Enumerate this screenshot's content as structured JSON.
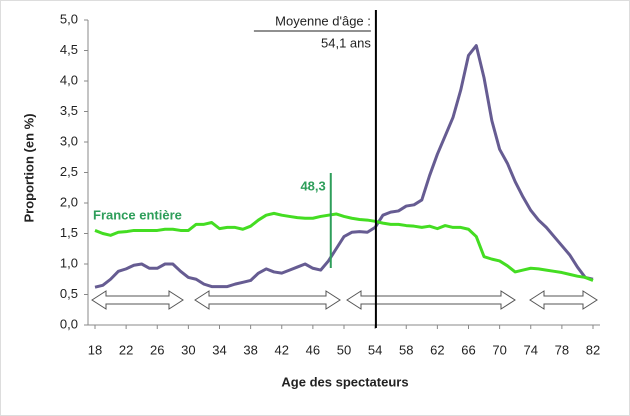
{
  "chart_data": {
    "type": "line",
    "xlabel": "Age des spectateurs",
    "ylabel": "Proportion (en %)",
    "x": [
      18,
      19,
      20,
      21,
      22,
      23,
      24,
      25,
      26,
      27,
      28,
      29,
      30,
      31,
      32,
      33,
      34,
      35,
      36,
      37,
      38,
      39,
      40,
      41,
      42,
      43,
      44,
      45,
      46,
      47,
      48,
      49,
      50,
      51,
      52,
      53,
      54,
      55,
      56,
      57,
      58,
      59,
      60,
      61,
      62,
      63,
      64,
      65,
      66,
      67,
      68,
      69,
      70,
      71,
      72,
      73,
      74,
      75,
      76,
      77,
      78,
      79,
      80,
      81,
      82
    ],
    "series": [
      {
        "color": "#665c92",
        "values": [
          0.62,
          0.65,
          0.75,
          0.88,
          0.92,
          0.98,
          1.0,
          0.93,
          0.93,
          1.0,
          1.0,
          0.88,
          0.78,
          0.75,
          0.67,
          0.63,
          0.63,
          0.63,
          0.67,
          0.7,
          0.73,
          0.85,
          0.92,
          0.87,
          0.85,
          0.9,
          0.95,
          1.0,
          0.93,
          0.9,
          1.05,
          1.25,
          1.45,
          1.52,
          1.53,
          1.52,
          1.6,
          1.8,
          1.85,
          1.87,
          1.95,
          1.97,
          2.05,
          2.45,
          2.8,
          3.1,
          3.4,
          3.85,
          4.42,
          4.58,
          4.05,
          3.35,
          2.88,
          2.65,
          2.35,
          2.1,
          1.88,
          1.72,
          1.6,
          1.45,
          1.3,
          1.15,
          0.95,
          0.78,
          0.75
        ]
      },
      {
        "name": "France entière",
        "color": "#44dd22",
        "values": [
          1.55,
          1.5,
          1.47,
          1.52,
          1.53,
          1.55,
          1.55,
          1.55,
          1.55,
          1.57,
          1.57,
          1.55,
          1.55,
          1.65,
          1.65,
          1.68,
          1.58,
          1.6,
          1.6,
          1.57,
          1.62,
          1.72,
          1.8,
          1.83,
          1.8,
          1.78,
          1.76,
          1.75,
          1.75,
          1.78,
          1.8,
          1.82,
          1.78,
          1.75,
          1.73,
          1.72,
          1.7,
          1.67,
          1.65,
          1.65,
          1.63,
          1.62,
          1.6,
          1.62,
          1.58,
          1.63,
          1.6,
          1.6,
          1.57,
          1.45,
          1.12,
          1.08,
          1.05,
          0.97,
          0.87,
          0.9,
          0.93,
          0.92,
          0.9,
          0.88,
          0.86,
          0.83,
          0.8,
          0.78,
          0.73
        ]
      }
    ],
    "xlim": [
      18,
      82
    ],
    "xticks": [
      18,
      22,
      26,
      30,
      34,
      38,
      42,
      46,
      50,
      54,
      58,
      62,
      66,
      70,
      74,
      78,
      82
    ],
    "ylim": [
      0,
      5
    ],
    "yticks": [
      {
        "value": 0,
        "label": "0,0"
      },
      {
        "value": 0.5,
        "label": "0,5"
      },
      {
        "value": 1,
        "label": "1,0"
      },
      {
        "value": 1.5,
        "label": "1,5"
      },
      {
        "value": 2,
        "label": "2,0"
      },
      {
        "value": 2.5,
        "label": "2,5"
      },
      {
        "value": 3,
        "label": "3,0"
      },
      {
        "value": 3.5,
        "label": "3,5"
      },
      {
        "value": 4,
        "label": "4,0"
      },
      {
        "value": 4.5,
        "label": "4,5"
      },
      {
        "value": 5,
        "label": "5,0"
      }
    ],
    "mean_age": {
      "label": "Moyenne d'âge :",
      "value": 54.1,
      "value_label": "54,1 ans",
      "color": "#000000"
    },
    "france_mean": {
      "value": 48.3,
      "label": "48,3",
      "color": "#2e9e5a"
    },
    "grid": false
  }
}
